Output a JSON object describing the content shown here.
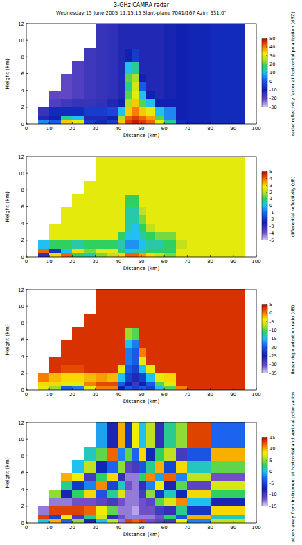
{
  "chart_data": [
    {
      "type": "heatmap",
      "title": "3-GHz CAMRA radar",
      "subtitle": "Wednesday 15 June 2005 11:15:15 Slant-plane 7041/167 Azim 331.0°",
      "x_label": "Distance (km)",
      "y_label": "Height (km)",
      "xlim": [
        0,
        100
      ],
      "ylim": [
        0,
        12
      ],
      "xticks": [
        0,
        10,
        20,
        30,
        40,
        50,
        60,
        70,
        80,
        90,
        100
      ],
      "yticks": [
        0,
        2,
        4,
        6,
        8,
        10,
        12
      ],
      "x_edges": [
        5,
        10,
        15,
        20,
        25,
        30,
        35,
        40,
        43,
        46,
        49,
        52,
        56,
        60,
        65,
        70,
        80,
        95
      ],
      "y_edges": [
        0,
        0.5,
        1,
        2,
        3,
        4,
        5,
        6,
        7.5,
        9,
        12
      ],
      "values": [
        [
          5,
          -12,
          -15,
          null,
          null,
          null,
          null,
          null,
          null,
          null
        ],
        [
          0,
          -10,
          -8,
          -18,
          -20,
          null,
          null,
          null,
          null,
          null
        ],
        [
          35,
          15,
          -8,
          -16,
          -20,
          -20,
          -20,
          null,
          null,
          null
        ],
        [
          30,
          10,
          -8,
          -15,
          -18,
          -18,
          -18,
          -18,
          null,
          null
        ],
        [
          -5,
          -12,
          -5,
          -15,
          -16,
          -16,
          -16,
          -16,
          -16,
          null
        ],
        [
          -8,
          -12,
          -5,
          -14,
          -15,
          -15,
          -15,
          -15,
          -15,
          -15
        ],
        [
          -5,
          -10,
          -3,
          -12,
          -14,
          -14,
          -14,
          -14,
          -14,
          -14
        ],
        [
          35,
          25,
          10,
          -10,
          -12,
          -12,
          -12,
          -12,
          -12,
          -12
        ],
        [
          45,
          42,
          35,
          25,
          20,
          15,
          20,
          10,
          -10,
          -12
        ],
        [
          48,
          45,
          40,
          35,
          30,
          28,
          25,
          15,
          -5,
          -12
        ],
        [
          45,
          42,
          35,
          20,
          10,
          0,
          -10,
          -12,
          -12,
          -12
        ],
        [
          42,
          38,
          30,
          10,
          -10,
          -12,
          -12,
          -12,
          -12,
          -12
        ],
        [
          30,
          20,
          10,
          -10,
          -12,
          -12,
          -12,
          -12,
          -12,
          -12
        ],
        [
          15,
          5,
          5,
          -10,
          -11,
          -11,
          -11,
          -11,
          -11,
          -11
        ],
        [
          -8,
          -10,
          -10,
          -10,
          -10,
          -10,
          -10,
          -10,
          -10,
          -10
        ],
        [
          -9,
          -9,
          -9,
          -9,
          -9,
          -9,
          -9,
          -9,
          -9,
          -9
        ],
        [
          -8,
          -8,
          -8,
          -8,
          -8,
          -8,
          -8,
          -8,
          -8,
          -8
        ]
      ],
      "colorbar": {
        "label": "radar reflectivity factor at horizontal polarization (dBZ)",
        "range": [
          -30,
          50
        ],
        "ticks": [
          50,
          40,
          30,
          20,
          10,
          0,
          -10,
          -20,
          -30
        ]
      }
    },
    {
      "type": "heatmap",
      "x_label": "Distance (km)",
      "y_label": "Height (km)",
      "xlim": [
        0,
        100
      ],
      "ylim": [
        0,
        12
      ],
      "xticks": [
        0,
        10,
        20,
        30,
        40,
        50,
        60,
        70,
        80,
        90,
        100
      ],
      "yticks": [
        0,
        2,
        4,
        6,
        8,
        10,
        12
      ],
      "x_edges": [
        5,
        10,
        15,
        20,
        25,
        30,
        35,
        40,
        43,
        46,
        49,
        52,
        56,
        60,
        65,
        70,
        80,
        95
      ],
      "y_edges": [
        0,
        0.5,
        1,
        2,
        3,
        4,
        5,
        6,
        7.5,
        9,
        12
      ],
      "values": [
        [
          -3,
          4,
          0,
          null,
          null,
          null,
          null,
          null,
          null,
          null
        ],
        [
          3,
          -2,
          1,
          2.5,
          2.5,
          null,
          null,
          null,
          null,
          null
        ],
        [
          4,
          0,
          1,
          2.5,
          2.5,
          2.5,
          2.5,
          null,
          null,
          null
        ],
        [
          1,
          3,
          0.5,
          2.5,
          2.5,
          2.5,
          2.5,
          2.5,
          null,
          null
        ],
        [
          0.5,
          1.5,
          1,
          2.5,
          2.5,
          2.5,
          2.5,
          2.5,
          2.5,
          null
        ],
        [
          1.5,
          2.5,
          1,
          2.5,
          2.5,
          2.5,
          2.5,
          2.5,
          2.5,
          2.5
        ],
        [
          2,
          2.5,
          1,
          2.5,
          2.5,
          2.5,
          2.5,
          2.5,
          2.5,
          2.5
        ],
        [
          3,
          1,
          0.5,
          1,
          2.5,
          2.5,
          2.5,
          2.5,
          2.5,
          2.5
        ],
        [
          4,
          0,
          -0.5,
          0,
          0.5,
          0.5,
          0.5,
          1,
          2.5,
          2.5
        ],
        [
          4,
          0.5,
          -0.5,
          0,
          0,
          0.5,
          0.5,
          1,
          2.5,
          2.5
        ],
        [
          3.5,
          0.5,
          0,
          0.5,
          1,
          1.5,
          2,
          2.5,
          2.5,
          2.5
        ],
        [
          3,
          1,
          0.5,
          1,
          2,
          2.5,
          2.5,
          2.5,
          2.5,
          2.5
        ],
        [
          2,
          1,
          0.5,
          1.5,
          2.5,
          2.5,
          2.5,
          2.5,
          2.5,
          2.5
        ],
        [
          1.5,
          1,
          1,
          1.5,
          2.5,
          2.5,
          2.5,
          2.5,
          2.5,
          2.5
        ],
        [
          2.5,
          2.5,
          2,
          2.5,
          2.5,
          2.5,
          2.5,
          2.5,
          2.5,
          2.5
        ],
        [
          2.5,
          2.5,
          2.5,
          2.5,
          2.5,
          2.5,
          2.5,
          2.5,
          2.5,
          2.5
        ],
        [
          2.5,
          2.5,
          2.5,
          2.5,
          2.5,
          2.5,
          2.5,
          2.5,
          2.5,
          2.5
        ]
      ],
      "colorbar": {
        "label": "differential reflectivity (dB)",
        "range": [
          -5,
          5
        ],
        "ticks": [
          5,
          4,
          3,
          2,
          1,
          0,
          -1,
          -2,
          -3,
          -4,
          -5
        ]
      }
    },
    {
      "type": "heatmap",
      "x_label": "Distance (km)",
      "y_label": "Height (km)",
      "xlim": [
        0,
        100
      ],
      "ylim": [
        0,
        12
      ],
      "xticks": [
        0,
        10,
        20,
        30,
        40,
        50,
        60,
        70,
        80,
        90,
        100
      ],
      "yticks": [
        0,
        2,
        4,
        6,
        8,
        10,
        12
      ],
      "x_edges": [
        5,
        10,
        15,
        20,
        25,
        30,
        35,
        40,
        43,
        46,
        49,
        52,
        56,
        60,
        65,
        70,
        80,
        95
      ],
      "y_edges": [
        0,
        0.5,
        1,
        2,
        3,
        4,
        5,
        6,
        7.5,
        9,
        12
      ],
      "values": [
        [
          -5,
          -3,
          0,
          null,
          null,
          null,
          null,
          null,
          null,
          null
        ],
        [
          -8,
          -3,
          -2,
          3,
          3,
          null,
          null,
          null,
          null,
          null
        ],
        [
          -20,
          -5,
          -3,
          2,
          3,
          3,
          3,
          null,
          null,
          null
        ],
        [
          -18,
          -5,
          -3,
          2,
          3,
          3,
          3,
          3,
          null,
          null
        ],
        [
          -5,
          0,
          -2,
          3,
          3,
          3,
          3,
          3,
          3,
          null
        ],
        [
          0,
          2,
          -1,
          3,
          3,
          3,
          3,
          3,
          3,
          3
        ],
        [
          0,
          2,
          -2,
          3,
          3,
          3,
          3,
          3,
          3,
          3
        ],
        [
          -25,
          -20,
          -15,
          -5,
          3,
          3,
          3,
          3,
          3,
          3
        ],
        [
          -20,
          -25,
          -22,
          -20,
          -18,
          -18,
          -15,
          -8,
          3,
          3
        ],
        [
          -22,
          -28,
          -26,
          -22,
          -20,
          -20,
          -18,
          -10,
          3,
          3
        ],
        [
          -20,
          -25,
          -22,
          -15,
          -5,
          0,
          3,
          3,
          3,
          3
        ],
        [
          -22,
          -20,
          -15,
          -5,
          3,
          3,
          3,
          3,
          3,
          3
        ],
        [
          -15,
          -10,
          -5,
          3,
          3,
          3,
          3,
          3,
          3,
          3
        ],
        [
          -10,
          -5,
          -3,
          3,
          3,
          3,
          3,
          3,
          3,
          3
        ],
        [
          0,
          3,
          3,
          3,
          3,
          3,
          3,
          3,
          3,
          3
        ],
        [
          3,
          3,
          3,
          3,
          3,
          3,
          3,
          3,
          3,
          3
        ],
        [
          3,
          3,
          3,
          3,
          3,
          3,
          3,
          3,
          3,
          3
        ]
      ],
      "colorbar": {
        "label": "linear depolarization ratio (dB)",
        "range": [
          -35,
          5
        ],
        "ticks": [
          5,
          0,
          -5,
          -10,
          -15,
          -20,
          -25,
          -30,
          -35
        ]
      }
    },
    {
      "type": "heatmap",
      "x_label": "Distance (km)",
      "y_label": "Height (km)",
      "xlim": [
        0,
        100
      ],
      "ylim": [
        0,
        12
      ],
      "xticks": [
        0,
        10,
        20,
        30,
        40,
        50,
        60,
        70,
        80,
        90,
        100
      ],
      "yticks": [
        0,
        2,
        4,
        6,
        8,
        10,
        12
      ],
      "x_edges": [
        5,
        10,
        15,
        20,
        25,
        30,
        35,
        40,
        43,
        46,
        49,
        52,
        56,
        60,
        65,
        70,
        80,
        95
      ],
      "y_edges": [
        0,
        0.5,
        1,
        2,
        3,
        4,
        5,
        6,
        7.5,
        9,
        12
      ],
      "values": [
        [
          0,
          13,
          -13,
          null,
          null,
          null,
          null,
          null,
          null,
          null
        ],
        [
          10,
          -5,
          13,
          -13,
          5,
          null,
          null,
          null,
          null,
          null
        ],
        [
          -3,
          8,
          13,
          -13,
          -8,
          2,
          10,
          null,
          null,
          null
        ],
        [
          5,
          -10,
          13,
          -12,
          3,
          -6,
          8,
          0,
          null,
          null
        ],
        [
          -8,
          2,
          12,
          -12,
          9,
          -2,
          -10,
          6,
          1,
          null
        ],
        [
          0,
          7,
          8,
          -11,
          -4,
          11,
          3,
          -7,
          4,
          -1
        ],
        [
          6,
          -9,
          4,
          -10,
          2,
          -5,
          9,
          -3,
          12,
          -8
        ],
        [
          -13,
          -12,
          -13,
          -12,
          7,
          1,
          -9,
          5,
          -2,
          10
        ],
        [
          13,
          -13,
          -13,
          -13,
          -13,
          -12,
          -13,
          -11,
          4,
          -6
        ],
        [
          12,
          -13,
          -14,
          -13,
          -13,
          -13,
          -13,
          -10,
          -3,
          8
        ],
        [
          13,
          -13,
          -12,
          -12,
          -10,
          -9,
          3,
          -4,
          9,
          0
        ],
        [
          -12,
          -13,
          -12,
          -11,
          5,
          -2,
          11,
          2,
          -7,
          6
        ],
        [
          -11,
          -12,
          -10,
          4,
          -6,
          8,
          -1,
          10,
          3,
          -9
        ],
        [
          -10,
          3,
          -9,
          7,
          1,
          -8,
          12,
          -5,
          6,
          2
        ],
        [
          8,
          -4,
          2,
          11,
          -7,
          4,
          -2,
          9,
          -10,
          5
        ],
        [
          -2,
          10,
          -6,
          0,
          9,
          -11,
          6,
          1,
          -4,
          13
        ],
        [
          6,
          1,
          9,
          -8,
          3,
          7,
          -12,
          4,
          10,
          -3
        ]
      ],
      "colorbar": {
        "label": "atters away from instrument at horizontal and vertical polarization",
        "range": [
          -15,
          15
        ],
        "ticks": [
          15,
          10,
          5,
          0,
          -5,
          -10,
          -15
        ]
      }
    }
  ]
}
